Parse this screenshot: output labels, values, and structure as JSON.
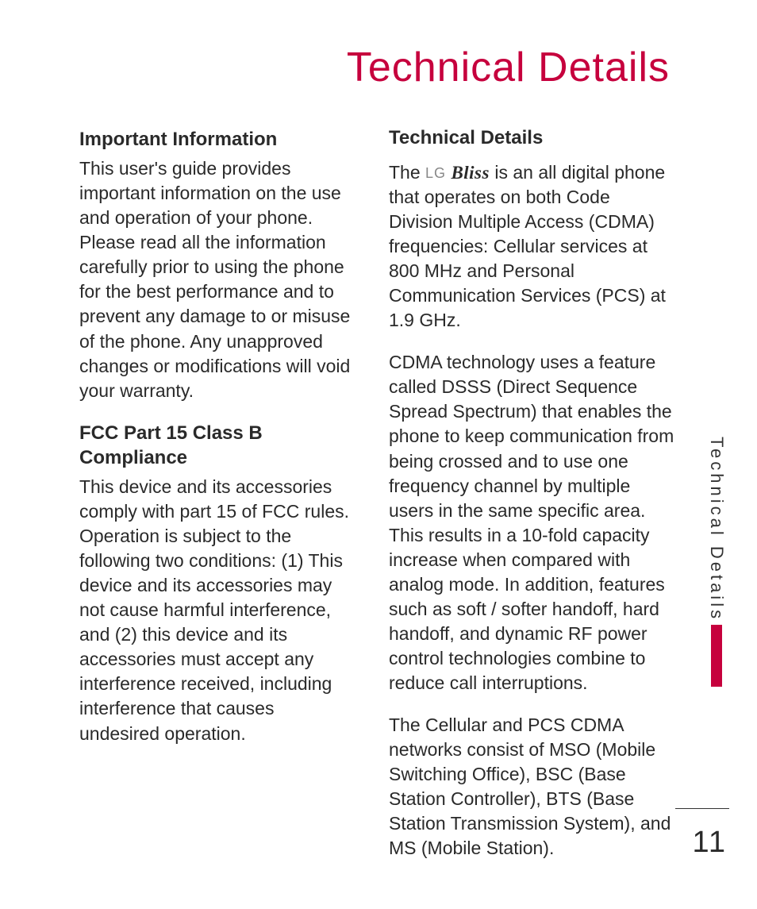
{
  "title": "Technical Details",
  "title_color": "#c6003d",
  "side_tab": {
    "label": "Technical Details",
    "bar_color": "#c6003d"
  },
  "page_number": "11",
  "left": {
    "h1": "Important Information",
    "p1": "This user's guide provides important information on the use and operation of your phone. Please read all the information carefully prior to using the phone for the best performance and to prevent any damage to or misuse of the phone. Any unapproved changes or modifications will void your warranty.",
    "h2": "FCC Part 15 Class B Compliance",
    "p2": "This device and its accessories comply with part 15 of FCC rules. Operation is subject to the following two conditions: (1) This device and its accessories may not cause harmful interference, and (2) this device and its accessories must accept any interference received, including interference that causes undesired operation."
  },
  "right": {
    "h1": "Technical Details",
    "p1_pre": "The ",
    "logo_lg": "LG",
    "logo_bliss": "Bliss",
    "p1_post": " is an all digital phone that operates on both Code Division Multiple Access (CDMA) frequencies: Cellular services at 800 MHz and Personal Communication Services (PCS) at 1.9 GHz.",
    "p2": "CDMA technology uses a feature called DSSS (Direct Sequence Spread Spectrum) that enables the phone to keep communication from being crossed and to use one frequency channel by multiple users in the same specific area. This results in a 10-fold capacity increase when compared with analog mode. In addition, features such as soft / softer handoff, hard handoff, and dynamic RF power control technologies combine to reduce call interruptions.",
    "p3": "The Cellular and PCS CDMA networks consist of MSO (Mobile Switching Office), BSC (Base Station Controller), BTS (Base Station Transmission System), and MS (Mobile Station)."
  }
}
